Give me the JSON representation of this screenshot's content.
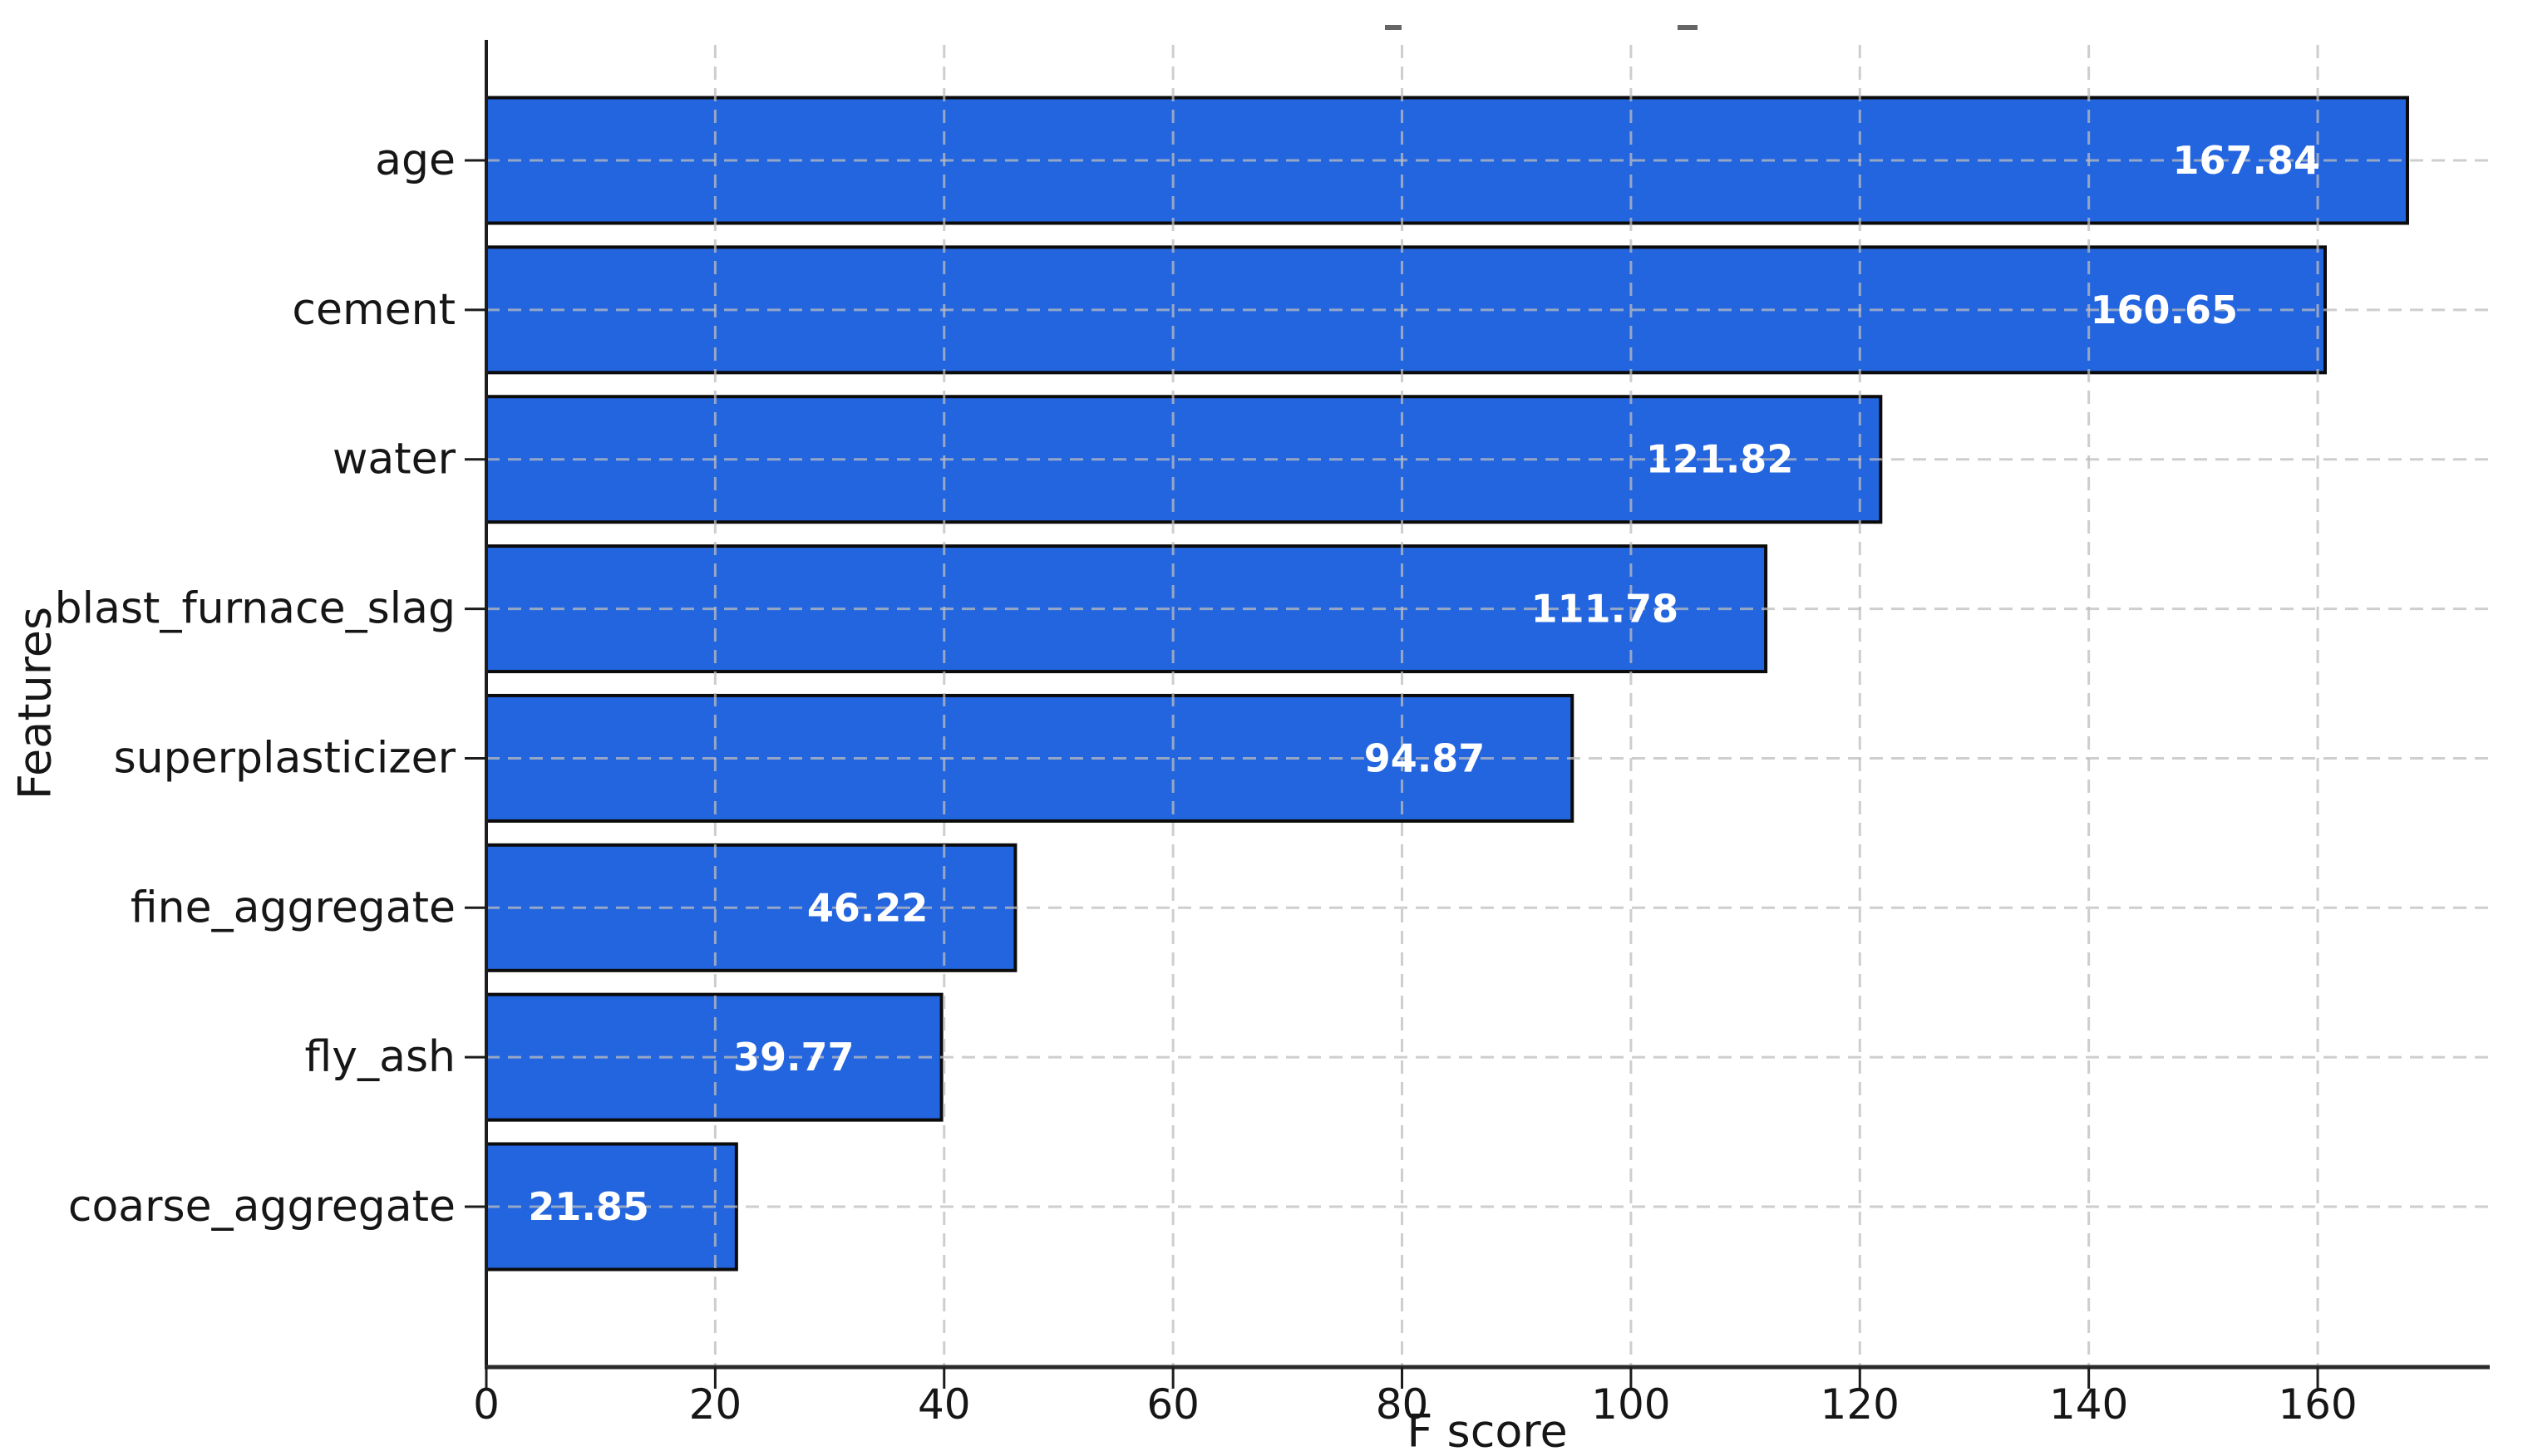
{
  "chart_data": {
    "type": "bar",
    "orientation": "horizontal",
    "title": "",
    "xlabel": "F score",
    "ylabel": "Features",
    "categories": [
      "age",
      "cement",
      "water",
      "blast_furnace_slag",
      "superplasticizer",
      "fine_aggregate",
      "fly_ash",
      "coarse_aggregate"
    ],
    "values": [
      167.84,
      160.65,
      121.82,
      111.78,
      94.87,
      46.22,
      39.77,
      21.85
    ],
    "value_labels": [
      "167.84",
      "160.65",
      "121.82",
      "111.78",
      "94.87",
      "46.22",
      "39.77",
      "21.85"
    ],
    "x_ticks": [
      "0",
      "20",
      "40",
      "60",
      "80",
      "100",
      "120",
      "140",
      "160"
    ],
    "x_tick_values": [
      0,
      20,
      40,
      60,
      80,
      100,
      120,
      140,
      160
    ],
    "xlim": [
      0,
      175
    ],
    "grid": true,
    "grid_style": "dashed",
    "legend_position": "none",
    "sort_order": "descending",
    "colors": {
      "bar_fill": "#2365df",
      "bar_edge": "#0b0b0b",
      "value_label_text": "#ffffff",
      "grid_line": "#bebebe",
      "axis_text": "#161616",
      "spine": "#1c1c1c"
    }
  }
}
